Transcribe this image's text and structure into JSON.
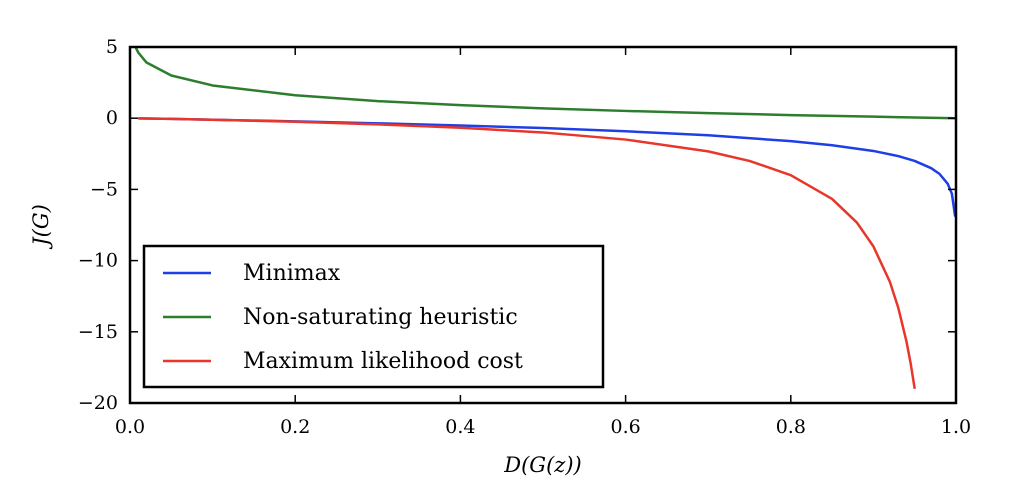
{
  "chart_data": {
    "type": "line",
    "xlabel": "D(G(z))",
    "ylabel": "J(G)",
    "xlim": [
      0.0,
      1.0
    ],
    "ylim": [
      -20,
      5
    ],
    "xticks": [
      "0.0",
      "0.2",
      "0.4",
      "0.6",
      "0.8",
      "1.0"
    ],
    "yticks": [
      "5",
      "0",
      "−5",
      "−10",
      "−15",
      "−20"
    ],
    "grid": false,
    "legend_position": "bottom-left",
    "series": [
      {
        "name": "Minimax",
        "color": "#1f3fe6",
        "x": [
          0.01,
          0.05,
          0.1,
          0.2,
          0.3,
          0.4,
          0.5,
          0.6,
          0.7,
          0.8,
          0.85,
          0.9,
          0.93,
          0.95,
          0.97,
          0.98,
          0.99,
          0.995,
          0.999
        ],
        "y": [
          -0.01,
          -0.05,
          -0.11,
          -0.22,
          -0.36,
          -0.51,
          -0.69,
          -0.92,
          -1.2,
          -1.61,
          -1.9,
          -2.3,
          -2.66,
          -3.0,
          -3.51,
          -3.91,
          -4.61,
          -5.3,
          -6.91
        ]
      },
      {
        "name": "Non-saturating heuristic",
        "color": "#2e7d2e",
        "x": [
          0.007,
          0.01,
          0.02,
          0.05,
          0.1,
          0.2,
          0.3,
          0.4,
          0.5,
          0.6,
          0.7,
          0.8,
          0.9,
          0.95,
          1.0
        ],
        "y": [
          4.96,
          4.61,
          3.91,
          3.0,
          2.3,
          1.61,
          1.2,
          0.92,
          0.69,
          0.51,
          0.36,
          0.22,
          0.11,
          0.05,
          0.0
        ]
      },
      {
        "name": "Maximum likelihood cost",
        "color": "#e8372a",
        "x": [
          0.01,
          0.05,
          0.1,
          0.2,
          0.3,
          0.4,
          0.5,
          0.6,
          0.7,
          0.75,
          0.8,
          0.85,
          0.88,
          0.9,
          0.92,
          0.93,
          0.94,
          0.945,
          0.95
        ],
        "y": [
          -0.01,
          -0.05,
          -0.11,
          -0.25,
          -0.43,
          -0.67,
          -1.0,
          -1.5,
          -2.33,
          -3.0,
          -4.0,
          -5.67,
          -7.33,
          -9.0,
          -11.5,
          -13.29,
          -15.67,
          -17.18,
          -19.0
        ]
      }
    ]
  }
}
